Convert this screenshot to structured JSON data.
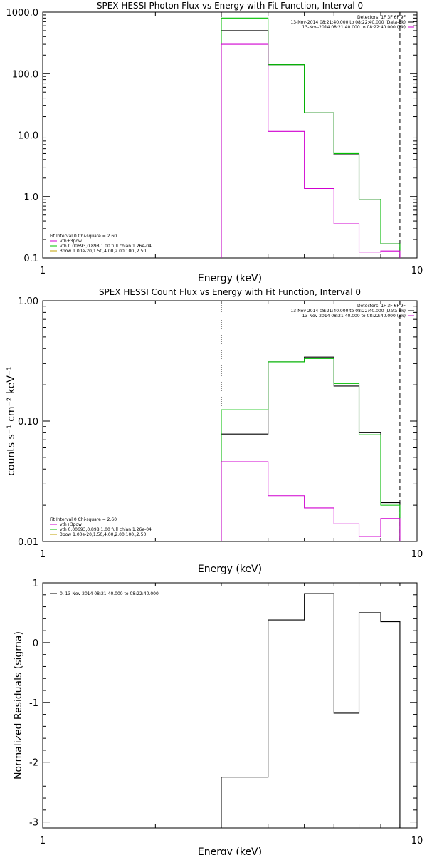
{
  "chart_data": [
    {
      "type": "line",
      "title": "SPEX HESSI Photon Flux vs Energy with Fit Function, Interval 0",
      "xlabel": "Energy (keV)",
      "ylabel": "",
      "xscale": "log",
      "yscale": "log",
      "xlim": [
        1,
        10
      ],
      "ylim": [
        0.1,
        1000
      ],
      "xticks": [
        1,
        10
      ],
      "xtick_labels": [
        "1",
        "10"
      ],
      "yticks": [
        0.1,
        1,
        10,
        100,
        1000
      ],
      "ytick_labels": [
        "0.1",
        "1.0",
        "10.0",
        "100.0",
        "1000.0"
      ],
      "vlines": [
        {
          "x": 3.0,
          "style": "dotted"
        },
        {
          "x": 9.0,
          "style": "dashed"
        }
      ],
      "bin_edges": [
        3.0,
        4.0,
        5.0,
        6.0,
        7.0,
        8.0,
        9.0
      ],
      "series": [
        {
          "name": "13-Nov-2014 08:21:40.000 to 08:22:40.000 (Data-Bk)",
          "color": "#000000",
          "values": [
            500,
            140,
            23,
            4.8,
            0.9,
            0.17
          ]
        },
        {
          "name": "vth+3pow",
          "color": "#00c000",
          "values": [
            800,
            140,
            23,
            5.0,
            0.9,
            0.17
          ]
        },
        {
          "name": "13-Nov-2014 08:21:40.000 to 08:22:40.000 (Bk)",
          "color": "#d000d0",
          "values": [
            300,
            11.5,
            1.35,
            0.36,
            0.125,
            0.13
          ]
        }
      ],
      "legend_right": [
        {
          "text": "Detectors: 1F 3F 6F 9F",
          "color": ""
        },
        {
          "text": "13-Nov-2014 08:21:40.000 to 08:22:40.000 (Data-Bk)",
          "color": "#000000"
        },
        {
          "text": "13-Nov-2014 08:21:40.000 to 08:22:40.000 (Bk)",
          "color": "#d000d0"
        }
      ],
      "legend_left": [
        {
          "text": "Fit Interval 0   Chi-square = 2.60",
          "color": ""
        },
        {
          "text": "vth+3pow",
          "color": "#d000d0"
        },
        {
          "text": "vth 0.00693,0.898,1.00  full chian 1.26e-04",
          "color": "#00c000"
        },
        {
          "text": "3pow 1.00e-20,1.50,4.00,2.00,100.,2.50",
          "color": "#c0a000"
        }
      ]
    },
    {
      "type": "line",
      "title": "SPEX HESSI Count Flux vs Energy with Fit Function, Interval 0",
      "xlabel": "Energy (keV)",
      "ylabel": "counts s⁻¹ cm⁻² keV⁻¹",
      "xscale": "log",
      "yscale": "log",
      "xlim": [
        1,
        10
      ],
      "ylim": [
        0.01,
        1.0
      ],
      "xticks": [
        1,
        10
      ],
      "xtick_labels": [
        "1",
        "10"
      ],
      "yticks": [
        0.01,
        0.1,
        1.0
      ],
      "ytick_labels": [
        "0.01",
        "0.10",
        "1.00"
      ],
      "vlines": [
        {
          "x": 3.0,
          "style": "dotted"
        },
        {
          "x": 9.0,
          "style": "dashed"
        }
      ],
      "bin_edges": [
        3.0,
        4.0,
        5.0,
        6.0,
        7.0,
        8.0,
        9.0
      ],
      "series": [
        {
          "name": "13-Nov-2014 08:21:40.000 to 08:22:40.000 (Data-Bk)",
          "color": "#000000",
          "values": [
            0.078,
            0.31,
            0.34,
            0.195,
            0.08,
            0.021
          ]
        },
        {
          "name": "vth+3pow",
          "color": "#00c000",
          "values": [
            0.124,
            0.31,
            0.33,
            0.205,
            0.077,
            0.02
          ]
        },
        {
          "name": "13-Nov-2014 08:21:40.000 to 08:22:40.000 (Bk)",
          "color": "#d000d0",
          "values": [
            0.046,
            0.024,
            0.019,
            0.014,
            0.011,
            0.0155
          ]
        }
      ],
      "legend_right": [
        {
          "text": "Detectors: 1F 3F 6F 9F",
          "color": ""
        },
        {
          "text": "13-Nov-2014 08:21:40.000 to 08:22:40.000 (Data-Bk)",
          "color": "#000000"
        },
        {
          "text": "13-Nov-2014 08:21:40.000 to 08:22:40.000 (Bk)",
          "color": "#d000d0"
        }
      ],
      "legend_left": [
        {
          "text": "Fit Interval 0   Chi-square = 2.60",
          "color": ""
        },
        {
          "text": "vth+3pow",
          "color": "#d000d0"
        },
        {
          "text": "vth 0.00693,0.898,1.00  full chian 1.26e-04",
          "color": "#00c000"
        },
        {
          "text": "3pow 1.00e-20,1.50,4.00,2.00,100.,2.50",
          "color": "#c0a000"
        }
      ]
    },
    {
      "type": "line",
      "title": "",
      "xlabel": "Energy (keV)",
      "ylabel": "Normalized Residuals (sigma)",
      "xscale": "log",
      "yscale": "linear",
      "xlim": [
        1,
        10
      ],
      "ylim": [
        -3.1,
        1.0
      ],
      "xticks": [
        1,
        10
      ],
      "xtick_labels": [
        "1",
        "10"
      ],
      "yticks": [
        -3,
        -2,
        -1,
        0,
        1
      ],
      "ytick_labels": [
        "-3",
        "-2",
        "-1",
        "0",
        "1"
      ],
      "vlines": [],
      "bin_edges": [
        3.0,
        4.0,
        5.0,
        6.0,
        7.0,
        8.0,
        9.0
      ],
      "series": [
        {
          "name": "0. 13-Nov-2014 08:21:40.000 to 08:22:40.000",
          "color": "#000000",
          "values": [
            -2.25,
            0.38,
            0.82,
            -1.18,
            0.5,
            0.35
          ]
        }
      ],
      "legend_left_top": [
        {
          "text": "0. 13-Nov-2014 08:21:40.000 to 08:22:40.000",
          "color": "#000000"
        }
      ]
    }
  ]
}
